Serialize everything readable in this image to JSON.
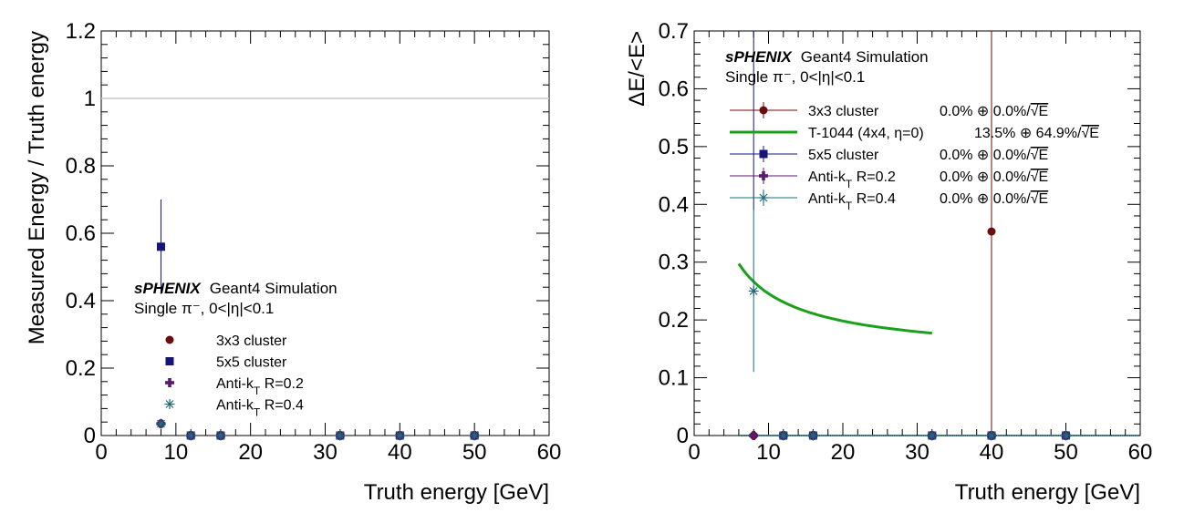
{
  "chart_data": [
    {
      "type": "scatter",
      "xlabel": "Truth energy [GeV]",
      "ylabel": "Measured Energy / Truth energy",
      "xlim": [
        0,
        60
      ],
      "ylim": [
        0,
        1.2
      ],
      "x_ticks": [
        "0",
        "10",
        "20",
        "30",
        "40",
        "50",
        "60"
      ],
      "y_ticks": [
        "0",
        "0.2",
        "0.4",
        "0.6",
        "0.8",
        "1",
        "1.2"
      ],
      "y_tick_values": [
        0,
        0.2,
        0.4,
        0.6,
        0.8,
        1.0,
        1.2
      ],
      "reference_line": 1.0,
      "annotation": {
        "brand": "sPHENIX",
        "text": "Geant4 Simulation",
        "line2": "Single π⁻, 0<|η|<0.1"
      },
      "legend_position": "middle-left",
      "series": [
        {
          "name": "3x3 cluster",
          "marker": "circle",
          "color": "#6b0d0d",
          "points": [
            {
              "x": 8,
              "y": 0.035
            },
            {
              "x": 12,
              "y": 0
            },
            {
              "x": 16,
              "y": 0
            },
            {
              "x": 32,
              "y": 0
            },
            {
              "x": 40,
              "y": 0
            },
            {
              "x": 50,
              "y": 0
            }
          ]
        },
        {
          "name": "5x5 cluster",
          "marker": "square",
          "color": "#14147a",
          "points": [
            {
              "x": 8,
              "y": 0.56,
              "err": 0.14
            },
            {
              "x": 12,
              "y": 0
            },
            {
              "x": 16,
              "y": 0
            },
            {
              "x": 32,
              "y": 0
            },
            {
              "x": 40,
              "y": 0
            },
            {
              "x": 50,
              "y": 0
            }
          ]
        },
        {
          "name": "Anti-k",
          "sub": "T",
          "tail": " R=0.2",
          "marker": "plus",
          "color": "#5a1a6e",
          "points": [
            {
              "x": 8,
              "y": 0.035
            },
            {
              "x": 12,
              "y": 0
            },
            {
              "x": 16,
              "y": 0
            },
            {
              "x": 32,
              "y": 0
            },
            {
              "x": 40,
              "y": 0
            },
            {
              "x": 50,
              "y": 0
            }
          ]
        },
        {
          "name": "Anti-k",
          "sub": "T",
          "tail": " R=0.4",
          "marker": "star",
          "color": "#1a6e7a",
          "points": [
            {
              "x": 8,
              "y": 0.035
            },
            {
              "x": 12,
              "y": 0
            },
            {
              "x": 16,
              "y": 0
            },
            {
              "x": 32,
              "y": 0
            },
            {
              "x": 40,
              "y": 0
            },
            {
              "x": 50,
              "y": 0
            }
          ]
        }
      ]
    },
    {
      "type": "scatter",
      "xlabel": "Truth energy [GeV]",
      "ylabel": "ΔE/<E>",
      "xlim": [
        0,
        60
      ],
      "ylim": [
        0,
        0.7
      ],
      "x_ticks": [
        "0",
        "10",
        "20",
        "30",
        "40",
        "50",
        "60"
      ],
      "y_ticks": [
        "0",
        "0.1",
        "0.2",
        "0.3",
        "0.4",
        "0.5",
        "0.6",
        "0.7"
      ],
      "y_tick_values": [
        0,
        0.1,
        0.2,
        0.3,
        0.4,
        0.5,
        0.6,
        0.7
      ],
      "annotation": {
        "brand": "sPHENIX",
        "text": "Geant4 Simulation",
        "line2": "Single π⁻, 0<|η|<0.1"
      },
      "legend_position": "top-left",
      "fit_lines": [
        {
          "label": "0.0% ⊕ 0.0%/√E",
          "y": 0,
          "color": "#1a6e7a",
          "xrange": [
            6,
            60
          ]
        }
      ],
      "series": [
        {
          "name": "3x3 cluster",
          "fit": "0.0% ⊕ 0.0%/",
          "marker": "circle",
          "color": "#6b0d0d",
          "points": [
            {
              "x": 8,
              "y": 0
            },
            {
              "x": 12,
              "y": 0
            },
            {
              "x": 16,
              "y": 0
            },
            {
              "x": 32,
              "y": 0
            },
            {
              "x": 40,
              "y": 0.353,
              "err_up": 0.35,
              "err_down": 0.353
            },
            {
              "x": 50,
              "y": 0
            }
          ]
        },
        {
          "name": "T-1044 (4x4, η=0)",
          "fit": "13.5% ⊕ 64.9%/",
          "marker": "line",
          "color": "#1aa01a",
          "curve": {
            "a": 0.135,
            "b": 0.649,
            "x_from": 6,
            "x_to": 32
          }
        },
        {
          "name": "5x5 cluster",
          "fit": "0.0% ⊕ 0.0%/",
          "marker": "square",
          "color": "#14147a",
          "points": [
            {
              "x": 8,
              "y": 0.71,
              "err": 0.32
            },
            {
              "x": 12,
              "y": 0
            },
            {
              "x": 16,
              "y": 0
            },
            {
              "x": 32,
              "y": 0
            },
            {
              "x": 40,
              "y": 0
            },
            {
              "x": 50,
              "y": 0
            }
          ]
        },
        {
          "name": "Anti-k",
          "sub": "T",
          "tail": " R=0.2",
          "fit": "0.0% ⊕ 0.0%/",
          "marker": "plus",
          "color": "#5a1a6e",
          "points": [
            {
              "x": 8,
              "y": 0
            },
            {
              "x": 12,
              "y": 0
            },
            {
              "x": 16,
              "y": 0
            },
            {
              "x": 32,
              "y": 0
            },
            {
              "x": 40,
              "y": 0
            },
            {
              "x": 50,
              "y": 0
            }
          ]
        },
        {
          "name": "Anti-k",
          "sub": "T",
          "tail": " R=0.4",
          "fit": "0.0% ⊕ 0.0%/",
          "marker": "star",
          "color": "#1a6e7a",
          "points": [
            {
              "x": 8,
              "y": 0.25,
              "err": 0.14
            },
            {
              "x": 12,
              "y": 0
            },
            {
              "x": 16,
              "y": 0
            },
            {
              "x": 32,
              "y": 0
            },
            {
              "x": 40,
              "y": 0
            },
            {
              "x": 50,
              "y": 0
            }
          ]
        }
      ]
    }
  ],
  "sqrt_label": "E"
}
